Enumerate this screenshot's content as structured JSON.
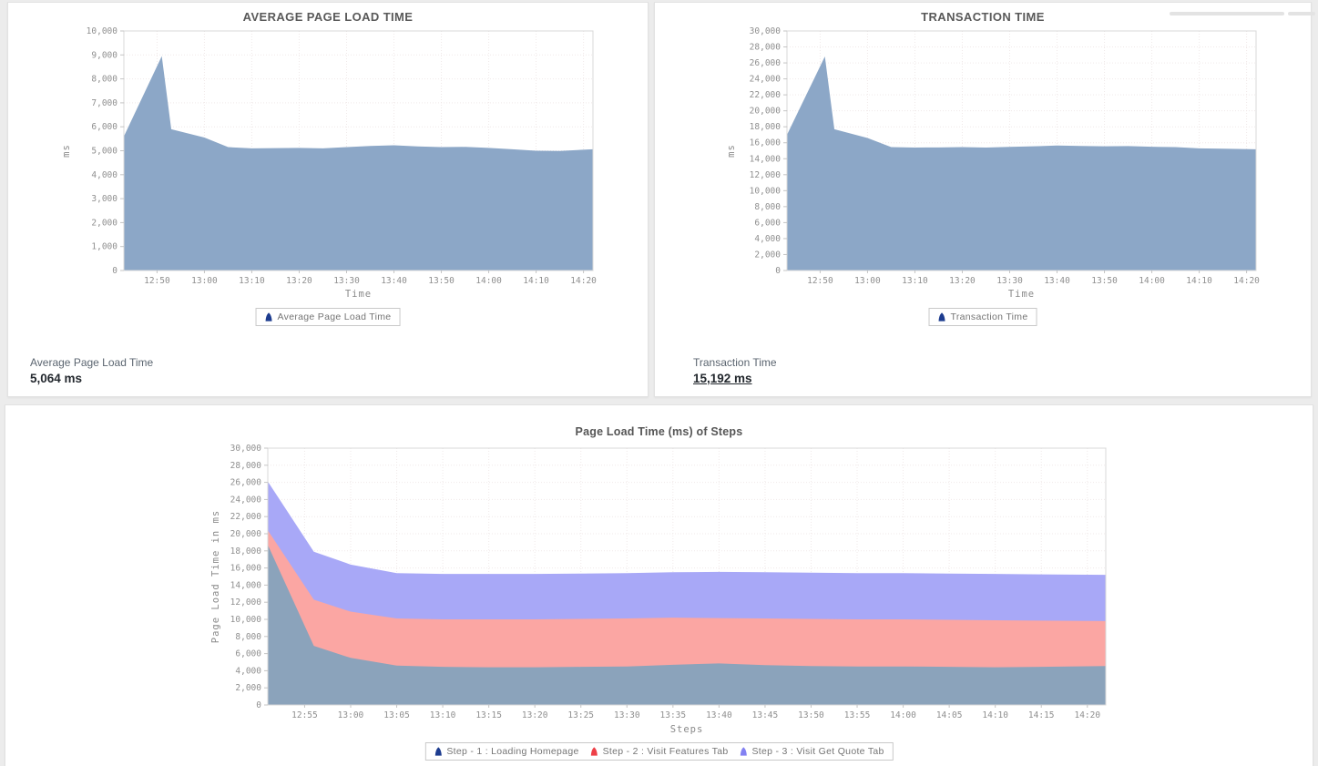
{
  "cards": {
    "average_page_load": {
      "title": "AVERAGE PAGE LOAD TIME",
      "summary": {
        "label": "Average Page Load Time",
        "value": "5,064 ms"
      }
    },
    "transaction_time": {
      "title": "TRANSACTION TIME",
      "summary": {
        "label": "Transaction Time",
        "value": "15,192 ms"
      }
    },
    "steps": {
      "title": "Page Load Time (ms) of Steps"
    }
  },
  "chart_data": [
    {
      "id": "avg_page_load",
      "type": "area",
      "title": "AVERAGE PAGE LOAD TIME",
      "xlabel": "Time",
      "ylabel": "ms",
      "ylim": [
        0,
        10000
      ],
      "ytick_step": 1000,
      "grid": true,
      "legend_position": "bottom",
      "xlim": [
        "12:43",
        "14:22"
      ],
      "x_ticks": [
        "12:50",
        "13:00",
        "13:10",
        "13:20",
        "13:30",
        "13:40",
        "13:50",
        "14:00",
        "14:10",
        "14:20"
      ],
      "x": [
        "12:43",
        "12:51",
        "12:53",
        "13:00",
        "13:05",
        "13:10",
        "13:15",
        "13:20",
        "13:25",
        "13:30",
        "13:35",
        "13:40",
        "13:45",
        "13:50",
        "13:55",
        "14:00",
        "14:05",
        "14:10",
        "14:15",
        "14:22"
      ],
      "stacked": false,
      "series": [
        {
          "name": "Average Page Load Time",
          "color": "#8CA7C7",
          "legend_icon_color": "#1D3C8F",
          "values": [
            5600,
            8950,
            5900,
            5550,
            5150,
            5100,
            5110,
            5120,
            5100,
            5150,
            5200,
            5230,
            5180,
            5150,
            5160,
            5120,
            5060,
            5000,
            4990,
            5064
          ]
        }
      ]
    },
    {
      "id": "transaction_time",
      "type": "area",
      "title": "TRANSACTION TIME",
      "xlabel": "Time",
      "ylabel": "ms",
      "ylim": [
        0,
        30000
      ],
      "ytick_step": 2000,
      "grid": true,
      "legend_position": "bottom",
      "xlim": [
        "12:43",
        "14:22"
      ],
      "x_ticks": [
        "12:50",
        "13:00",
        "13:10",
        "13:20",
        "13:30",
        "13:40",
        "13:50",
        "14:00",
        "14:10",
        "14:20"
      ],
      "x": [
        "12:43",
        "12:51",
        "12:53",
        "13:00",
        "13:05",
        "13:10",
        "13:15",
        "13:20",
        "13:25",
        "13:30",
        "13:35",
        "13:40",
        "13:45",
        "13:50",
        "13:55",
        "14:00",
        "14:05",
        "14:10",
        "14:15",
        "14:22"
      ],
      "stacked": false,
      "series": [
        {
          "name": "Transaction Time",
          "color": "#8CA7C7",
          "legend_icon_color": "#1D3C8F",
          "values": [
            17000,
            26800,
            17700,
            16600,
            15450,
            15400,
            15420,
            15450,
            15400,
            15480,
            15550,
            15650,
            15600,
            15550,
            15580,
            15500,
            15450,
            15300,
            15250,
            15192
          ]
        }
      ]
    },
    {
      "id": "steps_page_load",
      "type": "area",
      "title": "Page Load Time (ms) of Steps",
      "xlabel": "Steps",
      "ylabel": "Page Load Time in ms",
      "ylim": [
        0,
        30000
      ],
      "ytick_step": 2000,
      "grid": true,
      "legend_position": "bottom",
      "xlim": [
        "12:51",
        "14:22"
      ],
      "x_ticks": [
        "12:55",
        "13:00",
        "13:05",
        "13:10",
        "13:15",
        "13:20",
        "13:25",
        "13:30",
        "13:35",
        "13:40",
        "13:45",
        "13:50",
        "13:55",
        "14:00",
        "14:05",
        "14:10",
        "14:15",
        "14:20"
      ],
      "x": [
        "12:51",
        "12:56",
        "13:00",
        "13:05",
        "13:10",
        "13:15",
        "13:20",
        "13:25",
        "13:30",
        "13:35",
        "13:40",
        "13:45",
        "13:50",
        "13:55",
        "14:00",
        "14:05",
        "14:10",
        "14:15",
        "14:22"
      ],
      "stacked": true,
      "series": [
        {
          "name": "Step - 1 : Loading Homepage",
          "color": "#8BA3BB",
          "legend_icon_color": "#1D3C8F",
          "values": [
            18700,
            6900,
            5500,
            4600,
            4450,
            4400,
            4400,
            4450,
            4500,
            4700,
            4850,
            4650,
            4550,
            4500,
            4500,
            4450,
            4400,
            4450,
            4550
          ]
        },
        {
          "name": "Step - 2 : Visit Features Tab",
          "color": "#FBA6A3",
          "legend_icon_color": "#EE4048",
          "values": [
            1700,
            5400,
            5400,
            5500,
            5550,
            5600,
            5600,
            5600,
            5600,
            5500,
            5300,
            5450,
            5500,
            5500,
            5500,
            5500,
            5500,
            5400,
            5250
          ]
        },
        {
          "name": "Step - 3 : Visit Get Quote Tab",
          "color": "#A8A8F7",
          "legend_icon_color": "#8381F2",
          "values": [
            5700,
            5600,
            5500,
            5300,
            5300,
            5300,
            5300,
            5300,
            5300,
            5300,
            5400,
            5400,
            5400,
            5400,
            5400,
            5400,
            5400,
            5400,
            5400
          ]
        }
      ]
    }
  ]
}
